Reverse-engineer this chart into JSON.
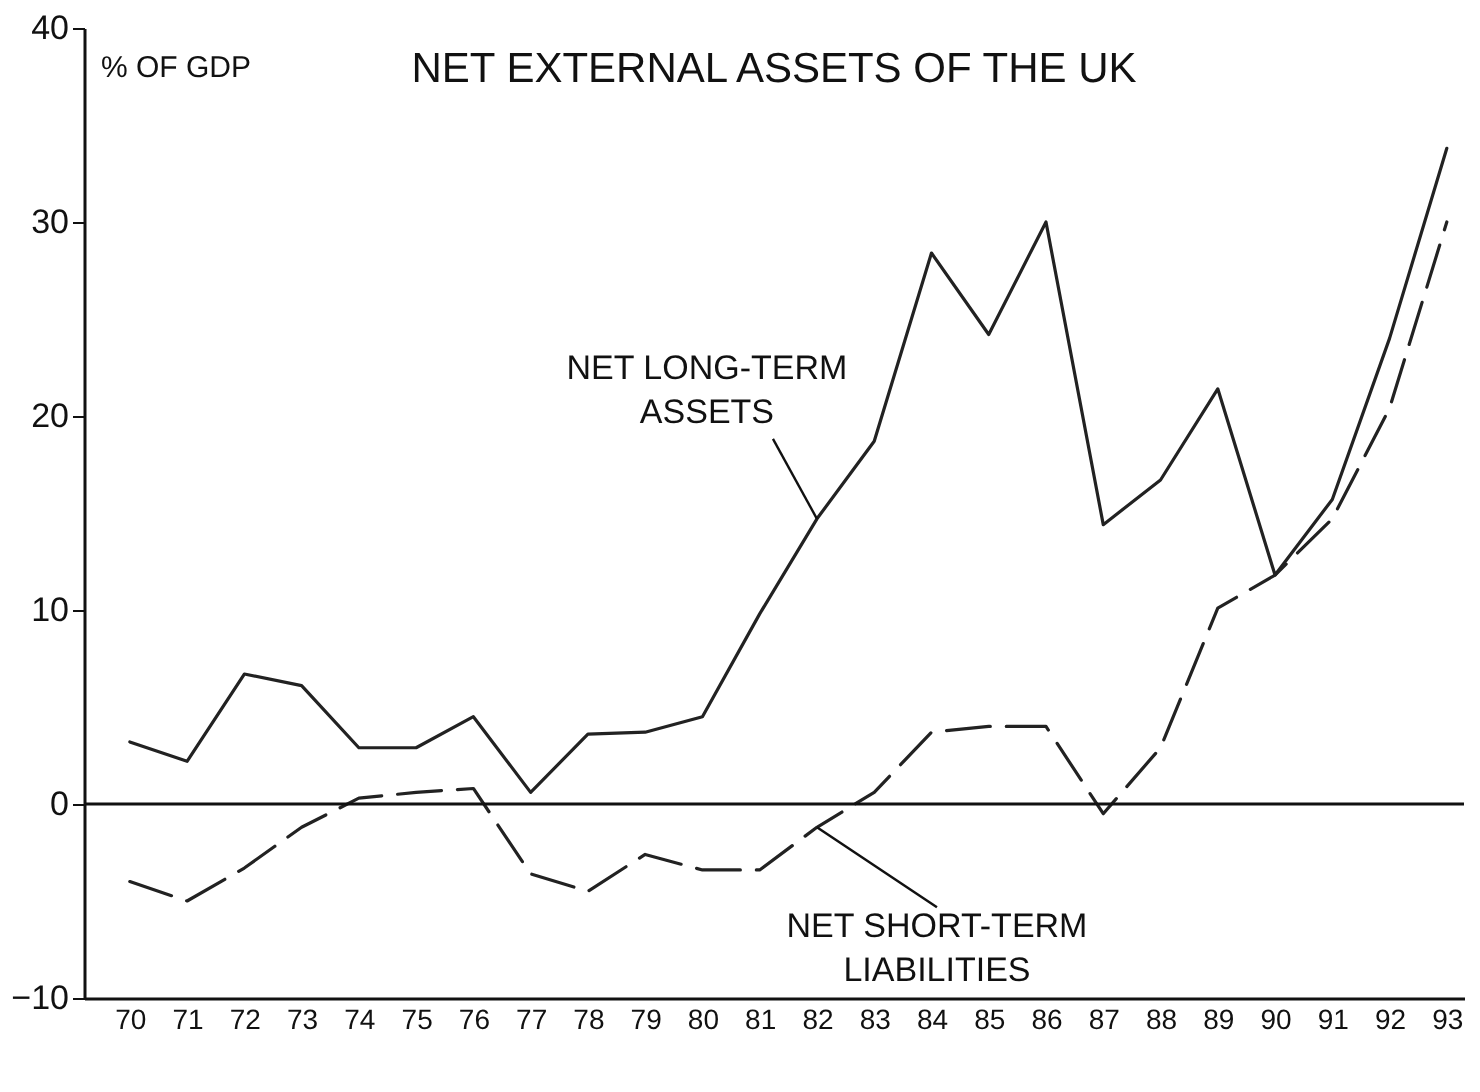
{
  "chart_data": {
    "type": "line",
    "title": "NET EXTERNAL ASSETS OF THE UK",
    "ylabel": "% OF GDP",
    "x": [
      70,
      71,
      72,
      73,
      74,
      75,
      76,
      77,
      78,
      79,
      80,
      81,
      82,
      83,
      84,
      85,
      86,
      87,
      88,
      89,
      90,
      91,
      92,
      93
    ],
    "series": [
      {
        "name": "NET LONG-TERM ASSETS",
        "color": "#222222",
        "line_style": "solid",
        "values": [
          3.2,
          2.2,
          6.7,
          6.1,
          2.9,
          2.9,
          4.5,
          0.6,
          3.6,
          3.7,
          4.5,
          9.8,
          14.7,
          18.7,
          28.4,
          24.2,
          30.0,
          14.4,
          16.7,
          21.4,
          11.8,
          15.7,
          24.0,
          33.8
        ]
      },
      {
        "name": "NET SHORT-TERM LIABILITIES",
        "color": "#222222",
        "line_style": "dashed",
        "values": [
          -4.0,
          -5.0,
          -3.3,
          -1.2,
          0.3,
          0.6,
          0.8,
          -3.6,
          -4.5,
          -2.6,
          -3.4,
          -3.4,
          -1.2,
          0.6,
          3.7,
          4.0,
          4.0,
          -0.5,
          2.9,
          10.1,
          11.8,
          14.7,
          20.4,
          30.0
        ]
      }
    ],
    "xlim": [
      69.2,
      93.3
    ],
    "xticks": [
      70,
      71,
      72,
      73,
      74,
      75,
      76,
      77,
      78,
      79,
      80,
      81,
      82,
      83,
      84,
      85,
      86,
      87,
      88,
      89,
      90,
      91,
      92,
      93
    ],
    "ylim": [
      -10,
      40
    ],
    "yticks": [
      -10,
      0,
      10,
      20,
      30,
      40
    ],
    "ref_lines": [
      {
        "axis": "y",
        "value": 0
      }
    ],
    "grid": false,
    "marker": "none"
  }
}
